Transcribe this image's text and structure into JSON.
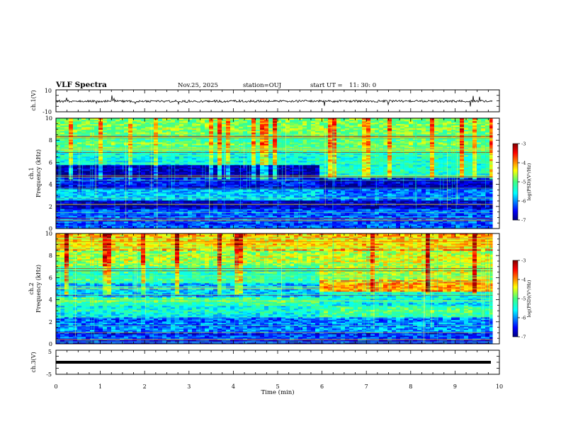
{
  "header": {
    "title": "VLF Spectra",
    "date": "Nov.25, 2025",
    "station": "station=OUJ",
    "start_label": "start  UT  =",
    "start_time": "11: 30: 0"
  },
  "chart_data": {
    "type": "heatmap",
    "title": "VLF Spectra",
    "x": {
      "label": "Time  (min)",
      "range": [
        0,
        10
      ],
      "ticks": [
        "0",
        "1",
        "2",
        "3",
        "4",
        "5",
        "6",
        "7",
        "8",
        "9",
        "10"
      ],
      "data_end": 9.85
    },
    "panels": [
      {
        "id": "ch1_waveform",
        "type": "line",
        "ylabel": "ch.1(V)",
        "ylim": [
          -10,
          10
        ],
        "yticks": [
          "10",
          "-10"
        ],
        "baseline_value": 0
      },
      {
        "id": "ch1_spectrogram",
        "type": "heatmap",
        "ylabel_line1": "ch.1",
        "ylabel_line2": "Frequency  (kHz)",
        "ylim": [
          0,
          10
        ],
        "yticks": [
          "0",
          "2",
          "4",
          "6",
          "8",
          "10"
        ],
        "colorbar": {
          "label": "log(PSD)(V²/Hz)",
          "range": [
            -7,
            -3
          ],
          "ticks": [
            "-3",
            "-4",
            "-5",
            "-6",
            "-7"
          ]
        },
        "regime_change_min": 5.85,
        "bands_before": [
          {
            "from": 0,
            "to": 0.5,
            "level": 0.2
          },
          {
            "from": 0.5,
            "to": 1.8,
            "level": 0.2
          },
          {
            "from": 1.8,
            "to": 2.6,
            "level": 0.05
          },
          {
            "from": 2.6,
            "to": 3.6,
            "level": 0.3
          },
          {
            "from": 3.6,
            "to": 4.6,
            "level": 0.12
          },
          {
            "from": 4.6,
            "to": 5.8,
            "level": 0.05
          },
          {
            "from": 5.8,
            "to": 7.0,
            "level": 0.38
          },
          {
            "from": 7.0,
            "to": 8.5,
            "level": 0.5
          },
          {
            "from": 8.5,
            "to": 10,
            "level": 0.55
          }
        ],
        "bands_after": [
          {
            "from": 0,
            "to": 0.5,
            "level": 0.22
          },
          {
            "from": 0.5,
            "to": 1.8,
            "level": 0.2
          },
          {
            "from": 1.8,
            "to": 2.6,
            "level": 0.06
          },
          {
            "from": 2.6,
            "to": 3.6,
            "level": 0.22
          },
          {
            "from": 3.6,
            "to": 4.6,
            "level": 0.05
          },
          {
            "from": 4.6,
            "to": 5.8,
            "level": 0.42
          },
          {
            "from": 5.8,
            "to": 7.0,
            "level": 0.42
          },
          {
            "from": 7.0,
            "to": 8.5,
            "level": 0.52
          },
          {
            "from": 8.5,
            "to": 10,
            "level": 0.55
          }
        ]
      },
      {
        "id": "ch2_spectrogram",
        "type": "heatmap",
        "ylabel_line1": "ch.2",
        "ylabel_line2": "Frequency  (kHz)",
        "ylim": [
          0,
          10
        ],
        "yticks": [
          "0",
          "2",
          "4",
          "6",
          "8",
          "10"
        ],
        "colorbar": {
          "label": "log(PSD)(V²/Hz)",
          "range": [
            -7,
            -3
          ],
          "ticks": [
            "-3",
            "-4",
            "-5",
            "-6",
            "-7"
          ]
        },
        "regime_change_min": 5.9,
        "bands_before": [
          {
            "from": 0,
            "to": 1.0,
            "level": 0.15
          },
          {
            "from": 1.0,
            "to": 2.5,
            "level": 0.22
          },
          {
            "from": 2.5,
            "to": 3.5,
            "level": 0.4
          },
          {
            "from": 3.5,
            "to": 4.2,
            "level": 0.48
          },
          {
            "from": 4.2,
            "to": 5.5,
            "level": 0.3
          },
          {
            "from": 5.5,
            "to": 7.0,
            "level": 0.45
          },
          {
            "from": 7.0,
            "to": 8.5,
            "level": 0.58
          },
          {
            "from": 8.5,
            "to": 10,
            "level": 0.68
          }
        ],
        "bands_after": [
          {
            "from": 0,
            "to": 1.0,
            "level": 0.15
          },
          {
            "from": 1.0,
            "to": 2.5,
            "level": 0.25
          },
          {
            "from": 2.5,
            "to": 3.5,
            "level": 0.5
          },
          {
            "from": 3.5,
            "to": 4.8,
            "level": 0.38
          },
          {
            "from": 4.8,
            "to": 5.8,
            "level": 0.75
          },
          {
            "from": 5.8,
            "to": 7.0,
            "level": 0.6
          },
          {
            "from": 7.0,
            "to": 8.5,
            "level": 0.62
          },
          {
            "from": 8.5,
            "to": 10,
            "level": 0.7
          }
        ]
      },
      {
        "id": "ch3_waveform",
        "type": "line",
        "ylabel": "ch.3(V)",
        "ylim": [
          -5,
          5
        ],
        "yticks": [
          "5",
          "-5"
        ],
        "baseline_value": 0
      }
    ]
  }
}
